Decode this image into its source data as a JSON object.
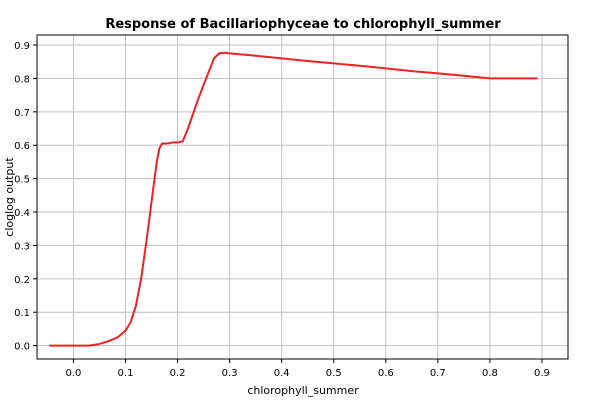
{
  "chart_data": {
    "type": "line",
    "title": "Response of Bacillariophyceae to chlorophyll_summer",
    "xlabel": "chlorophyll_summer",
    "ylabel": "cloglog output",
    "xlim": [
      -0.07,
      0.95
    ],
    "ylim": [
      -0.04,
      0.93
    ],
    "xticks": [
      "0.0",
      "0.1",
      "0.2",
      "0.3",
      "0.4",
      "0.5",
      "0.6",
      "0.7",
      "0.8",
      "0.9"
    ],
    "yticks": [
      "0.0",
      "0.1",
      "0.2",
      "0.3",
      "0.4",
      "0.5",
      "0.6",
      "0.7",
      "0.8",
      "0.9"
    ],
    "grid": true,
    "series": [
      {
        "color": "#ee2222",
        "x": [
          -0.045,
          0.0,
          0.03,
          0.05,
          0.07,
          0.085,
          0.1,
          0.11,
          0.12,
          0.13,
          0.14,
          0.15,
          0.16,
          0.165,
          0.17,
          0.18,
          0.19,
          0.2,
          0.21,
          0.22,
          0.24,
          0.26,
          0.27,
          0.28,
          0.29,
          0.3,
          0.35,
          0.4,
          0.45,
          0.5,
          0.55,
          0.6,
          0.65,
          0.7,
          0.75,
          0.8,
          0.85,
          0.89
        ],
        "y": [
          0.0,
          0.0,
          0.0,
          0.005,
          0.015,
          0.025,
          0.045,
          0.07,
          0.12,
          0.2,
          0.31,
          0.43,
          0.55,
          0.59,
          0.605,
          0.605,
          0.608,
          0.608,
          0.612,
          0.65,
          0.74,
          0.82,
          0.86,
          0.875,
          0.877,
          0.875,
          0.868,
          0.86,
          0.852,
          0.845,
          0.838,
          0.83,
          0.822,
          0.815,
          0.808,
          0.8,
          0.8,
          0.8
        ]
      }
    ]
  }
}
